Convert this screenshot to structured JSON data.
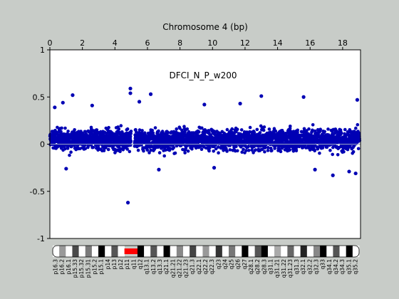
{
  "chart_data": {
    "type": "scatter",
    "title": "Chromosome 4 (bp)",
    "annotation": "DFCI_N_P_w200",
    "x_ticks": [
      0,
      2,
      4,
      6,
      8,
      10,
      12,
      14,
      16,
      18
    ],
    "y_ticks": [
      1,
      0.5,
      0,
      -0.5,
      -1
    ],
    "xlim": [
      0,
      19.1
    ],
    "ylim": [
      -1,
      1
    ],
    "x_tick_position": "top",
    "grid": false,
    "reference_line": 0,
    "series": [
      {
        "color": "#0000b4",
        "marker": "asterisk",
        "typical_band": [
          -0.2,
          0.3
        ],
        "gap": [
          5.0,
          5.2
        ],
        "outliers": [
          {
            "x": 1.4,
            "y": 0.52
          },
          {
            "x": 4.95,
            "y": 0.59
          },
          {
            "x": 4.95,
            "y": 0.54
          },
          {
            "x": 6.2,
            "y": 0.53
          },
          {
            "x": 13.0,
            "y": 0.51
          },
          {
            "x": 15.6,
            "y": 0.5
          },
          {
            "x": 18.9,
            "y": 0.47
          },
          {
            "x": 0.8,
            "y": 0.44
          },
          {
            "x": 5.5,
            "y": 0.45
          },
          {
            "x": 9.5,
            "y": 0.42
          },
          {
            "x": 11.7,
            "y": 0.43
          },
          {
            "x": 0.3,
            "y": 0.39
          },
          {
            "x": 2.6,
            "y": 0.41
          },
          {
            "x": 4.8,
            "y": -0.62
          },
          {
            "x": 1.0,
            "y": -0.26
          },
          {
            "x": 6.7,
            "y": -0.27
          },
          {
            "x": 10.1,
            "y": -0.25
          },
          {
            "x": 16.3,
            "y": -0.27
          },
          {
            "x": 17.4,
            "y": -0.33
          },
          {
            "x": 18.4,
            "y": -0.29
          },
          {
            "x": 18.8,
            "y": -0.31
          }
        ]
      }
    ]
  },
  "ideogram": {
    "bands": [
      "p16.3",
      "p16.2",
      "p16.1",
      "p15.33",
      "p15.32",
      "p15.31",
      "p15.2",
      "p15.1",
      "p14",
      "p13",
      "p12",
      "p11",
      "q11",
      "q12",
      "q13.1",
      "q13.2",
      "q13.3",
      "q21.1",
      "q21.21",
      "q21.22",
      "q21.23",
      "q21.3",
      "q22.1",
      "q22.2",
      "q22.3",
      "q23",
      "q24",
      "q25",
      "q26",
      "q27",
      "q28.1",
      "q28.2",
      "q28.3",
      "q31.1",
      "q31.21",
      "q31.22",
      "q31.23",
      "q31.3",
      "q32.1",
      "q32.2",
      "q32.3",
      "q33",
      "q34.1",
      "q34.2",
      "q34.3",
      "q35.1",
      "q35.2"
    ],
    "centromere_color": "#ff0000"
  }
}
